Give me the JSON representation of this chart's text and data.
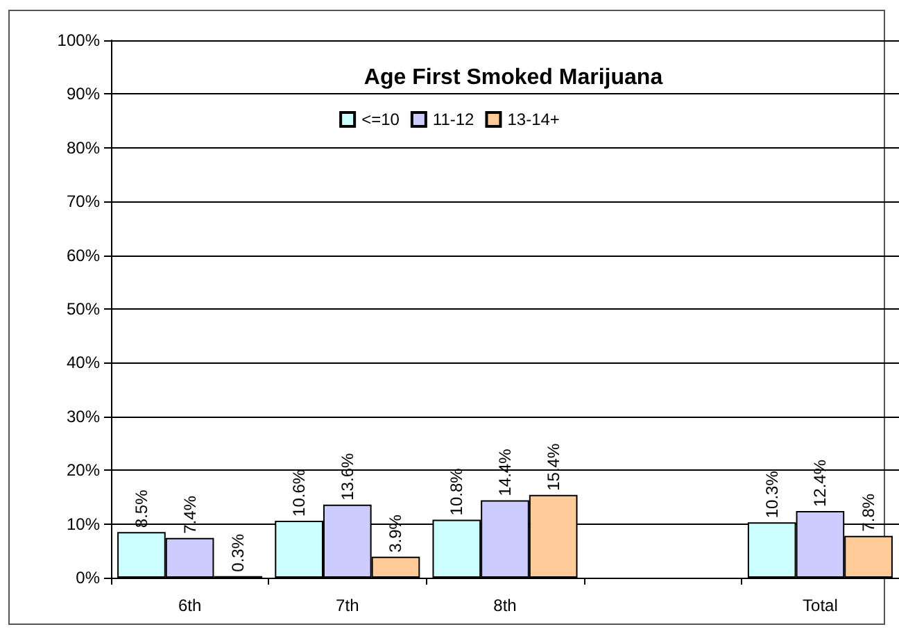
{
  "chart_data": {
    "type": "bar",
    "title": "Age First Smoked Marijuana",
    "categories": [
      "6th",
      "7th",
      "8th",
      null,
      "Total"
    ],
    "series": [
      {
        "name": "<=10",
        "color": "#ccffff",
        "values": [
          8.5,
          10.6,
          10.8,
          null,
          10.3
        ],
        "value_labels": [
          "8.5%",
          "10.6%",
          "10.8%",
          null,
          "10.3%"
        ]
      },
      {
        "name": "11-12",
        "color": "#ccccff",
        "values": [
          7.4,
          13.6,
          14.4,
          null,
          12.4
        ],
        "value_labels": [
          "7.4%",
          "13.6%",
          "14.4%",
          null,
          "12.4%"
        ]
      },
      {
        "name": "13-14+",
        "color": "#ffcc99",
        "values": [
          0.3,
          3.9,
          15.4,
          null,
          7.8
        ],
        "value_labels": [
          "0.3%",
          "3.9%",
          "15.4%",
          null,
          "7.8%"
        ]
      }
    ],
    "ylim": [
      0,
      100
    ],
    "yticks": [
      {
        "value": 0,
        "label": "0%"
      },
      {
        "value": 10,
        "label": "10%"
      },
      {
        "value": 20,
        "label": "20%"
      },
      {
        "value": 30,
        "label": "30%"
      },
      {
        "value": 40,
        "label": "40%"
      },
      {
        "value": 50,
        "label": "50%"
      },
      {
        "value": 60,
        "label": "60%"
      },
      {
        "value": 70,
        "label": "70%"
      },
      {
        "value": 80,
        "label": "80%"
      },
      {
        "value": 90,
        "label": "90%"
      },
      {
        "value": 100,
        "label": "100%"
      }
    ],
    "grid": "y",
    "legend": "top"
  }
}
